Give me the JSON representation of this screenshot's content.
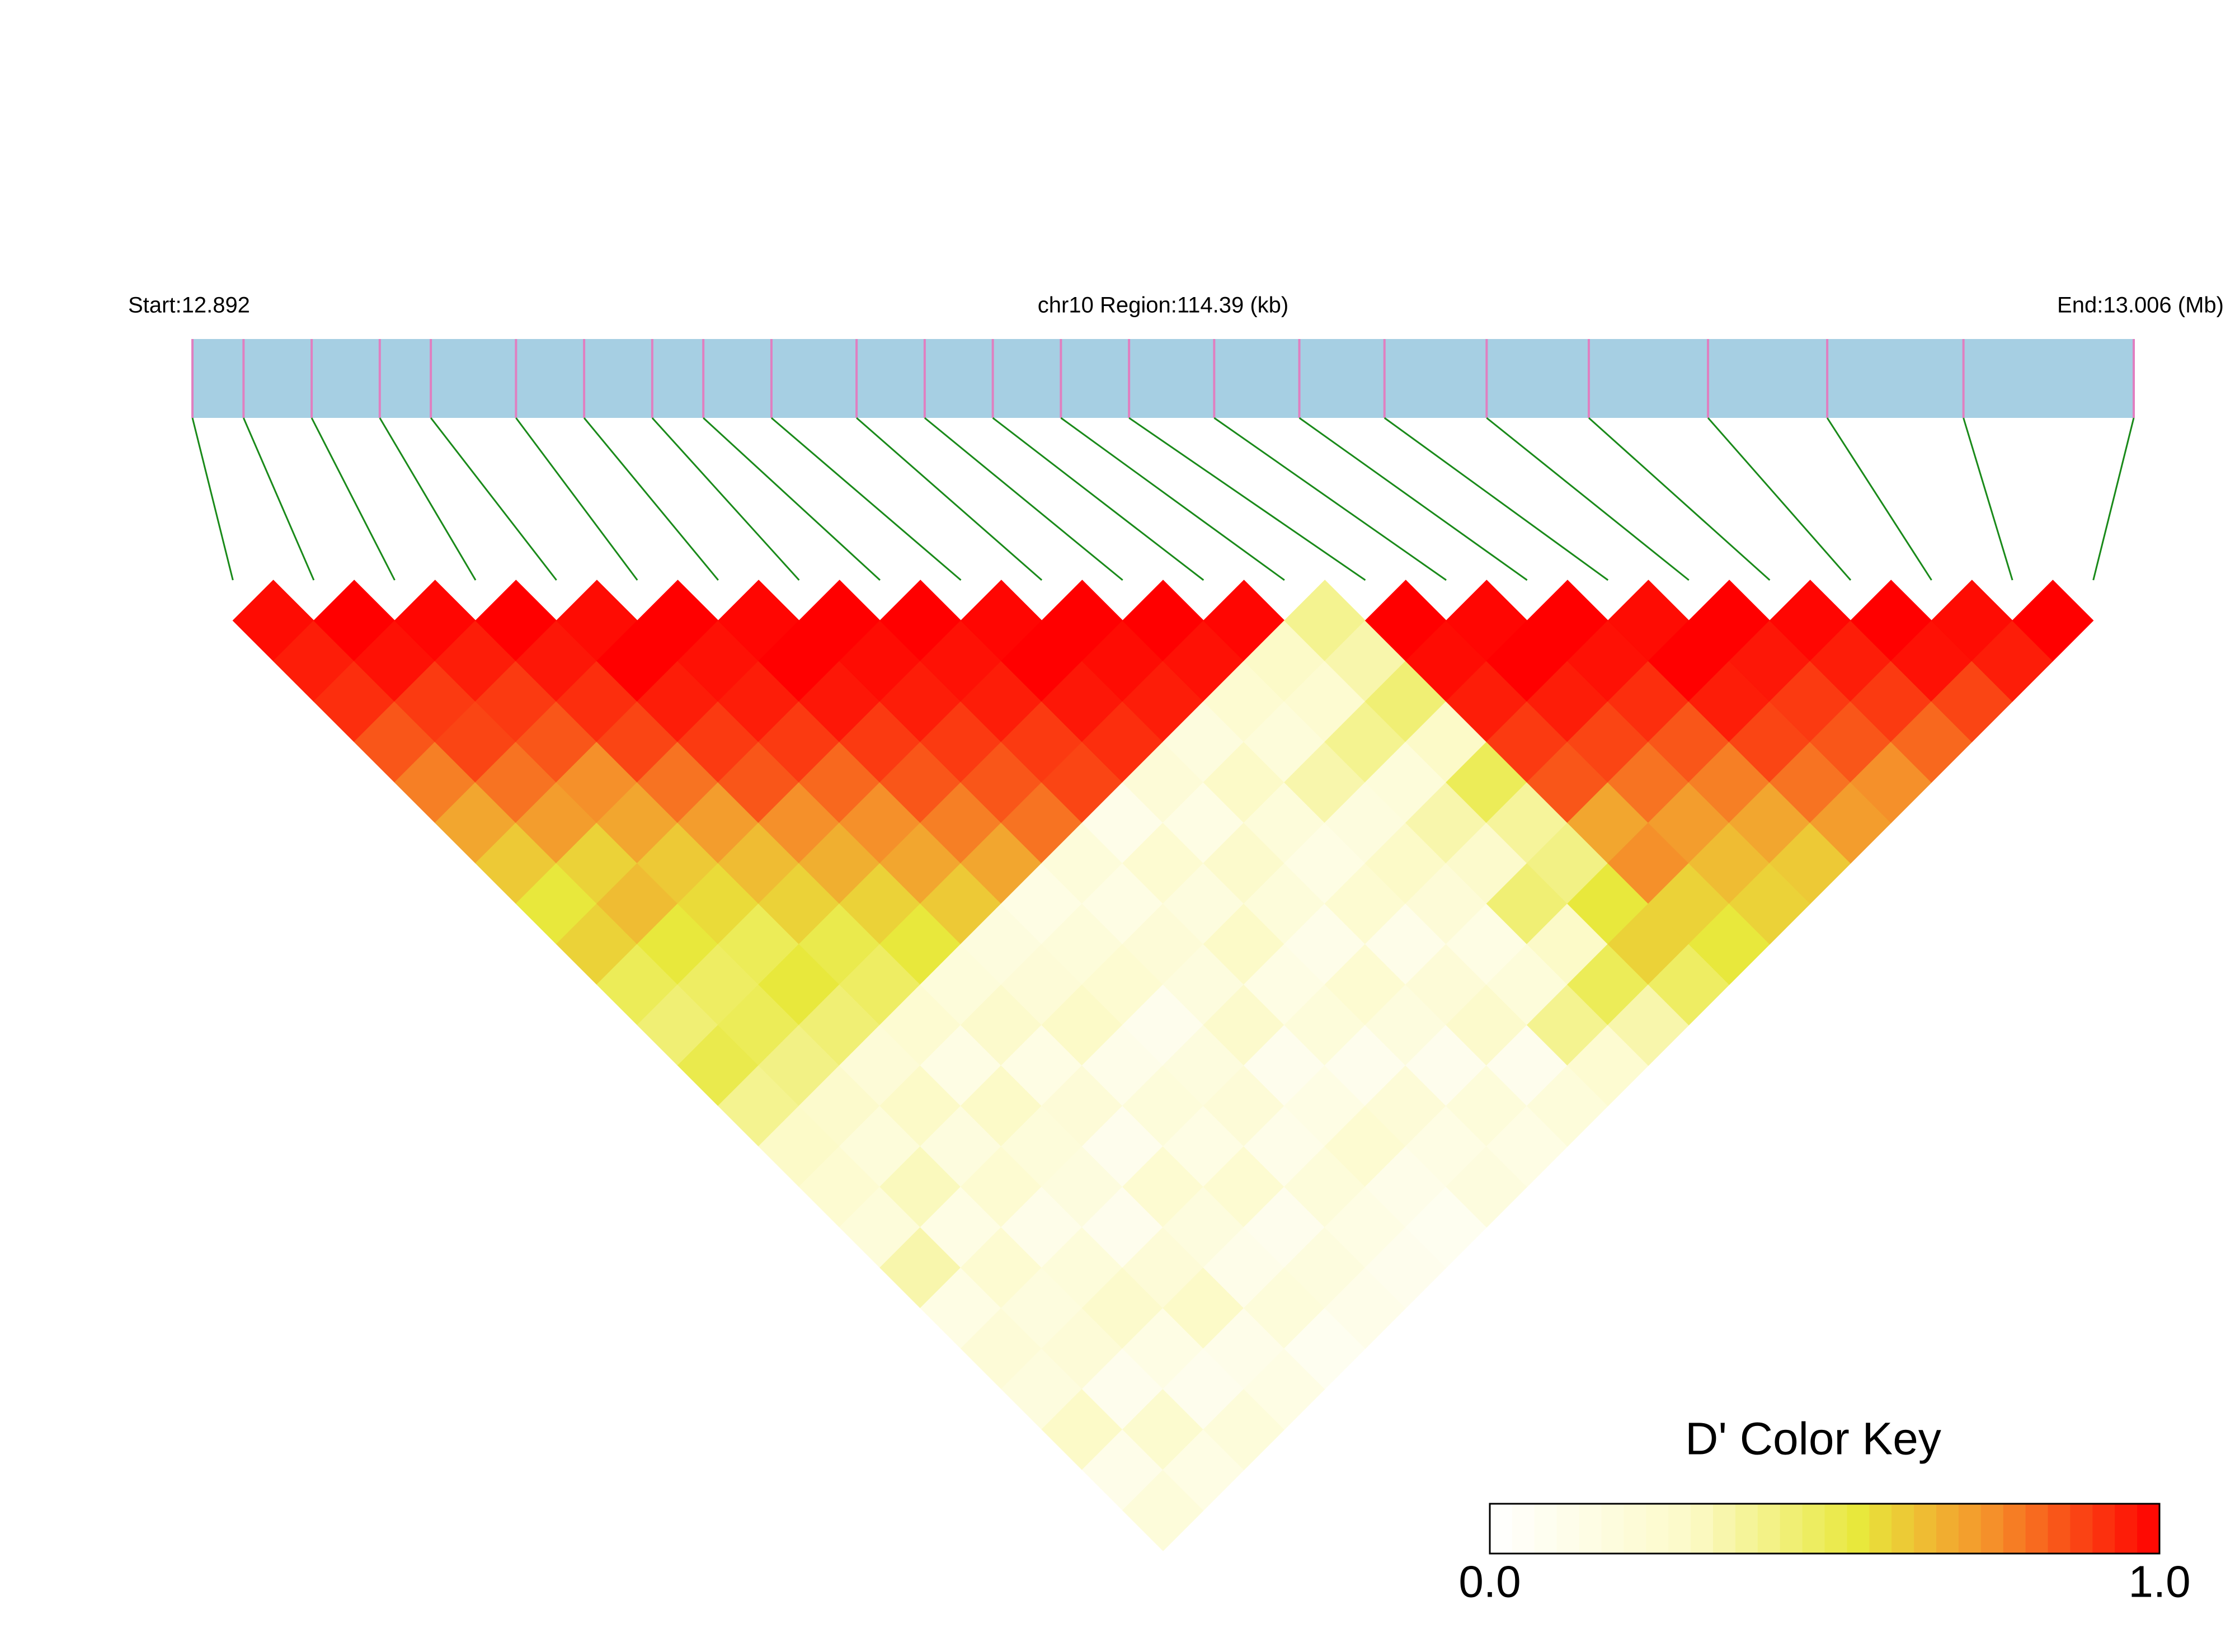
{
  "chart_data": {
    "type": "ld-heatmap",
    "start_label": "Start:12.892",
    "title": "chr10 Region:114.39 (kb)",
    "end_label": "End:13.006 (Mb)",
    "xlim": [
      12.892,
      13.006
    ],
    "snp_positions": [
      12.892,
      12.895,
      12.899,
      12.903,
      12.906,
      12.911,
      12.915,
      12.919,
      12.922,
      12.926,
      12.931,
      12.935,
      12.939,
      12.943,
      12.947,
      12.952,
      12.957,
      12.962,
      12.968,
      12.974,
      12.981,
      12.988,
      12.996,
      13.006
    ],
    "ld": [
      [
        0.98,
        0.95,
        0.92,
        0.85,
        0.78,
        0.7,
        0.62,
        0.55,
        0.6,
        0.5,
        0.45,
        0.52,
        0.4,
        0.3,
        0.25,
        0.2,
        0.35,
        0.15,
        0.22,
        0.18,
        0.3,
        0.12,
        0.2
      ],
      [
        1,
        0.97,
        0.9,
        0.88,
        0.8,
        0.72,
        0.6,
        0.65,
        0.55,
        0.48,
        0.5,
        0.42,
        0.28,
        0.2,
        0.32,
        0.15,
        0.25,
        0.18,
        0.22,
        0.1,
        0.26,
        0.15
      ],
      [
        0.99,
        0.95,
        0.9,
        0.85,
        0.75,
        0.7,
        0.62,
        0.58,
        0.5,
        0.55,
        0.45,
        0.22,
        0.3,
        0.18,
        0.25,
        0.12,
        0.2,
        0.28,
        0.15,
        0.1,
        0.2
      ],
      [
        1,
        0.96,
        0.92,
        0.88,
        0.8,
        0.72,
        0.65,
        0.6,
        0.52,
        0.48,
        0.25,
        0.15,
        0.3,
        0.2,
        0.18,
        0.1,
        0.22,
        0.3,
        0.12,
        0.15
      ],
      [
        0.98,
        1,
        0.95,
        0.9,
        0.85,
        0.75,
        0.68,
        0.6,
        0.55,
        0.2,
        0.28,
        0.15,
        0.22,
        0.1,
        0.25,
        0.18,
        0.12,
        0.2,
        0.08
      ],
      [
        1,
        0.97,
        0.95,
        0.9,
        0.82,
        0.75,
        0.7,
        0.62,
        0.18,
        0.22,
        0.3,
        0.12,
        0.2,
        0.15,
        0.25,
        0.1,
        0.18,
        0.12
      ],
      [
        0.99,
        1,
        0.96,
        0.9,
        0.85,
        0.78,
        0.7,
        0.15,
        0.2,
        0.25,
        0.1,
        0.18,
        0.22,
        0.12,
        0.2,
        0.15,
        0.1
      ],
      [
        1,
        0.98,
        0.95,
        0.9,
        0.85,
        0.8,
        0.2,
        0.15,
        0.22,
        0.18,
        0.28,
        0.1,
        0.15,
        0.25,
        0.12,
        0.08
      ],
      [
        1,
        0.97,
        0.95,
        0.9,
        0.88,
        0.12,
        0.25,
        0.18,
        0.3,
        0.15,
        0.2,
        0.1,
        0.22,
        0.15,
        0.18
      ],
      [
        0.99,
        1,
        0.96,
        0.92,
        0.22,
        0.15,
        0.28,
        0.2,
        0.12,
        0.25,
        0.18,
        0.1,
        0.2,
        0.15
      ],
      [
        1,
        0.98,
        0.95,
        0.18,
        0.3,
        0.2,
        0.15,
        0.25,
        0.12,
        0.22,
        0.28,
        0.1,
        0.2
      ],
      [
        1,
        0.97,
        0.25,
        0.2,
        0.35,
        0.18,
        0.3,
        0.22,
        0.15,
        0.2,
        0.4,
        0.25
      ],
      [
        0.99,
        0.3,
        0.25,
        0.4,
        0.2,
        0.35,
        0.28,
        0.45,
        0.3,
        0.5,
        0.35
      ],
      [
        0.4,
        0.35,
        0.45,
        0.3,
        0.5,
        0.38,
        0.42,
        0.55,
        0.6,
        0.48
      ],
      [
        1,
        0.98,
        0.95,
        0.9,
        0.85,
        0.7,
        0.75,
        0.6,
        0.55
      ],
      [
        0.99,
        1,
        0.95,
        0.88,
        0.8,
        0.72,
        0.65,
        0.6
      ],
      [
        1,
        0.97,
        0.92,
        0.85,
        0.78,
        0.7,
        0.62
      ],
      [
        0.98,
        1,
        0.95,
        0.88,
        0.8,
        0.72
      ],
      [
        1,
        0.96,
        0.9,
        0.85,
        0.75
      ],
      [
        0.99,
        0.95,
        0.9,
        0.82
      ],
      [
        1,
        0.97,
        0.88
      ],
      [
        0.98,
        0.95
      ],
      [
        1
      ]
    ],
    "color_key": {
      "title": "D' Color Key",
      "lim": [
        0,
        1
      ],
      "ticks": [
        {
          "value": 0,
          "label": "0.0"
        },
        {
          "value": 1,
          "label": "1.0"
        }
      ]
    }
  }
}
